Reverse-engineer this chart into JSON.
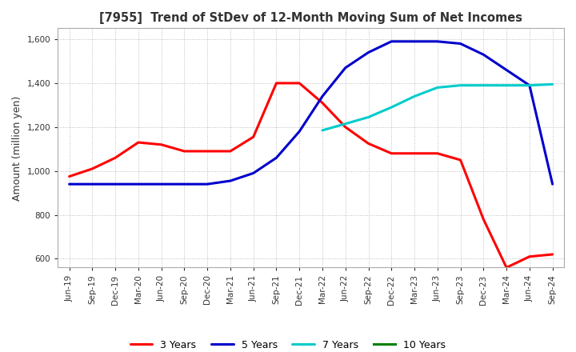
{
  "title": "[7955]  Trend of StDev of 12-Month Moving Sum of Net Incomes",
  "ylabel": "Amount (million yen)",
  "ylim": [
    560,
    1650
  ],
  "yticks": [
    600,
    800,
    1000,
    1200,
    1400,
    1600
  ],
  "line_colors": {
    "3 Years": "#ff0000",
    "5 Years": "#0000cc",
    "7 Years": "#00cccc",
    "10 Years": "#008000"
  },
  "x_labels": [
    "Jun-19",
    "Sep-19",
    "Dec-19",
    "Mar-20",
    "Jun-20",
    "Sep-20",
    "Dec-20",
    "Mar-21",
    "Jun-21",
    "Sep-21",
    "Dec-21",
    "Mar-22",
    "Jun-22",
    "Sep-22",
    "Dec-22",
    "Mar-23",
    "Jun-23",
    "Sep-23",
    "Dec-23",
    "Mar-24",
    "Jun-24",
    "Sep-24"
  ],
  "series_3y": [
    975,
    1010,
    1060,
    1130,
    1120,
    1090,
    1090,
    1090,
    1155,
    1400,
    1400,
    1310,
    1200,
    1125,
    1080,
    1080,
    1080,
    1050,
    780,
    560,
    610,
    620
  ],
  "series_5y": [
    940,
    940,
    940,
    940,
    940,
    940,
    940,
    955,
    990,
    1060,
    1180,
    1340,
    1470,
    1540,
    1590,
    1590,
    1590,
    1580,
    1530,
    1460,
    1390,
    940
  ],
  "series_7y": [
    null,
    null,
    null,
    null,
    null,
    null,
    null,
    null,
    null,
    null,
    null,
    1185,
    1215,
    1245,
    1290,
    1340,
    1380,
    1390,
    1390,
    1390,
    1390,
    1395
  ],
  "series_10y": [
    null,
    null,
    null,
    null,
    null,
    null,
    null,
    null,
    null,
    null,
    null,
    null,
    null,
    null,
    null,
    null,
    null,
    null,
    null,
    null,
    null,
    null
  ],
  "background_color": "#ffffff",
  "grid_color": "#b0b0b0"
}
